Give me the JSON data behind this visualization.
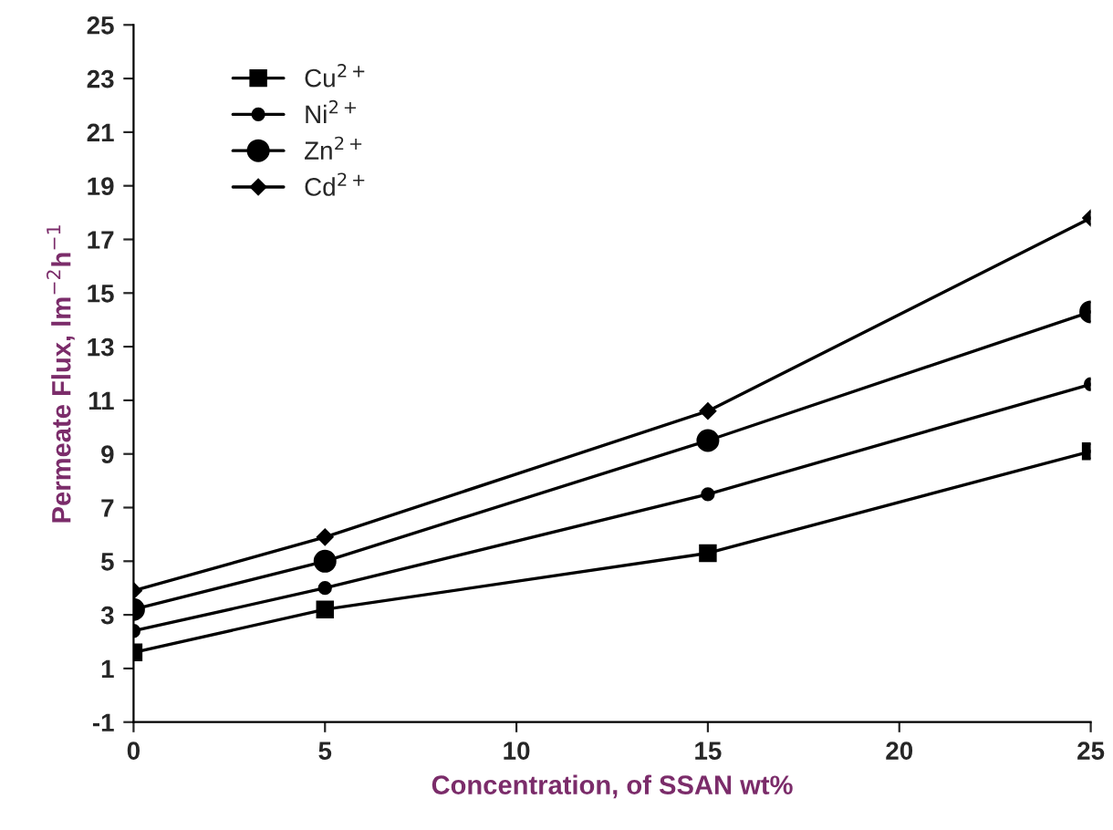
{
  "chart_data": {
    "type": "line",
    "xlabel": "Concentration, of SSAN wt%",
    "ylabel": "Permeate Flux, lm$^{−2}$h$^{−1}$",
    "x": [
      0,
      5,
      15,
      25
    ],
    "series": [
      {
        "name": "Cu$^{2+}$",
        "color": "#000000",
        "marker": "square",
        "values": [
          1.6,
          3.2,
          5.3,
          9.1
        ]
      },
      {
        "name": "Ni$^{2+}$",
        "color": "#000000",
        "marker": "circle",
        "values": [
          2.4,
          4.0,
          7.5,
          11.6
        ]
      },
      {
        "name": "Zn$^{2+}$",
        "color": "#000000",
        "marker": "circle",
        "values": [
          3.2,
          5.0,
          9.5,
          14.3
        ]
      },
      {
        "name": "Cd$^{2+}$",
        "color": "#000000",
        "marker": "diamond",
        "values": [
          3.9,
          5.9,
          10.6,
          17.8
        ]
      }
    ],
    "xlim": [
      0,
      25
    ],
    "xticks": [
      0,
      5,
      10,
      15,
      20,
      25
    ],
    "ylim": [
      -1,
      25
    ],
    "yticks": [
      -1,
      1,
      3,
      5,
      7,
      9,
      11,
      13,
      15,
      17,
      19,
      21,
      23,
      25
    ],
    "grid": false,
    "legend": "top left",
    "line_style": "solid"
  }
}
